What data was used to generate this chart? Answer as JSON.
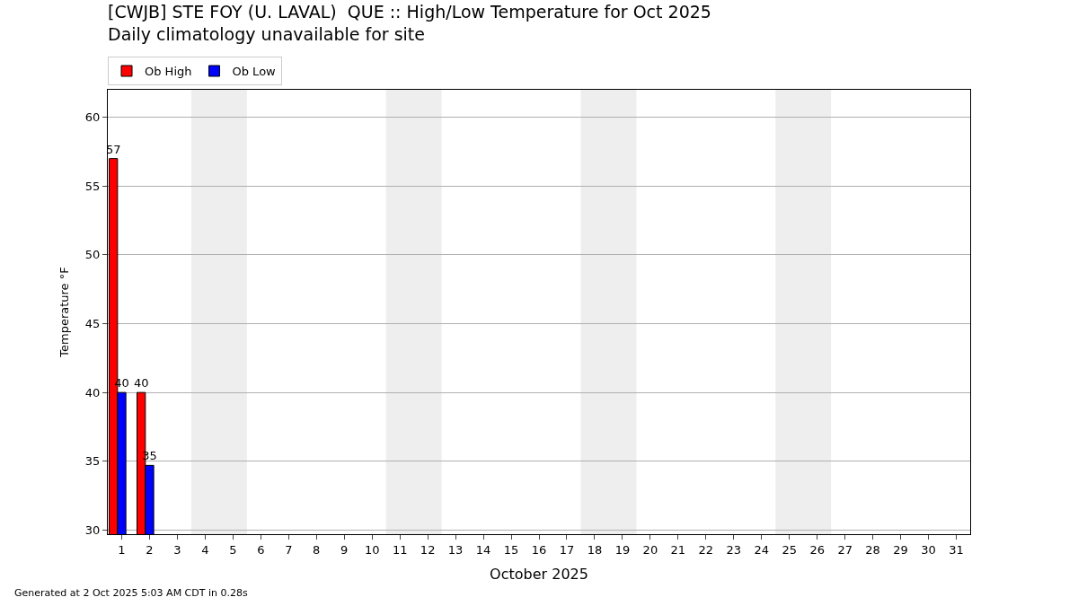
{
  "chart_data": {
    "type": "bar",
    "title": "[CWJB] STE FOY (U. LAVAL)  QUE :: High/Low Temperature for Oct 2025",
    "subtitle": "Daily climatology unavailable for site",
    "xlabel": "October 2025",
    "ylabel": "Temperature °F",
    "x": [
      1,
      2
    ],
    "series": [
      {
        "name": "Ob High",
        "color": "#ff0000",
        "values": [
          57,
          40
        ],
        "value_labels": [
          "57",
          "40"
        ]
      },
      {
        "name": "Ob Low",
        "color": "#0000ff",
        "values": [
          40,
          34.7
        ],
        "value_labels": [
          "40",
          "35"
        ]
      }
    ],
    "xlim": [
      0.5,
      31.5
    ],
    "xticks": [
      1,
      2,
      3,
      4,
      5,
      6,
      7,
      8,
      9,
      10,
      11,
      12,
      13,
      14,
      15,
      16,
      17,
      18,
      19,
      20,
      21,
      22,
      23,
      24,
      25,
      26,
      27,
      28,
      29,
      30,
      31
    ],
    "ylim": [
      29.7,
      62
    ],
    "yticks": [
      30,
      35,
      40,
      45,
      50,
      55,
      60
    ],
    "bands": [
      {
        "axis": "x",
        "from": 3.5,
        "to": 5.5,
        "color": "#eeeeee"
      },
      {
        "axis": "x",
        "from": 10.5,
        "to": 12.5,
        "color": "#eeeeee"
      },
      {
        "axis": "x",
        "from": 17.5,
        "to": 19.5,
        "color": "#eeeeee"
      },
      {
        "axis": "x",
        "from": 24.5,
        "to": 26.5,
        "color": "#eeeeee"
      }
    ],
    "grid": "y",
    "legend": "top",
    "annotations": [
      "Generated at 2 Oct 2025 5:03 AM CDT in 0.28s"
    ]
  }
}
